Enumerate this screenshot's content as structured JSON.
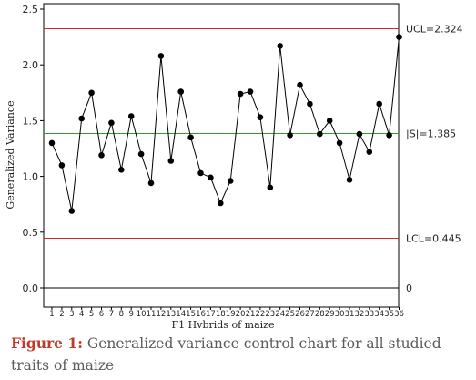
{
  "chart_data": {
    "type": "line",
    "xlabel": "F1 Hybrids of maize",
    "ylabel": "Generalized Variance",
    "ylim": [
      0,
      2.5
    ],
    "yticks": [
      "0.0",
      "0.5",
      "1.0",
      "1.5",
      "2.0",
      "2.5"
    ],
    "grid": false,
    "x": [
      1,
      2,
      3,
      4,
      5,
      6,
      7,
      8,
      9,
      10,
      11,
      12,
      13,
      14,
      15,
      16,
      17,
      18,
      19,
      20,
      21,
      22,
      23,
      24,
      25,
      26,
      27,
      28,
      29,
      30,
      31,
      32,
      33,
      34,
      35,
      36
    ],
    "values": [
      1.3,
      1.1,
      0.69,
      1.52,
      1.75,
      1.19,
      1.48,
      1.06,
      1.54,
      1.2,
      0.94,
      2.08,
      1.14,
      1.76,
      1.35,
      1.03,
      0.99,
      0.76,
      0.96,
      1.74,
      1.76,
      1.53,
      0.9,
      2.17,
      1.37,
      1.82,
      1.65,
      1.38,
      1.5,
      1.3,
      0.97,
      1.38,
      1.22,
      1.65,
      1.37,
      2.25
    ],
    "limits": {
      "ucl": {
        "value": 2.324,
        "label": "UCL=2.324",
        "color": "#d62728"
      },
      "center": {
        "value": 1.385,
        "label": "|S|=1.385",
        "color": "#2ca02c"
      },
      "lcl": {
        "value": 0.445,
        "label": "LCL=0.445",
        "color": "#d62728"
      },
      "zero": {
        "value": 0,
        "label": "0"
      }
    }
  },
  "caption": {
    "figure_label": "Figure 1:",
    "text": " Generalized variance control chart for all studied traits of maize"
  }
}
